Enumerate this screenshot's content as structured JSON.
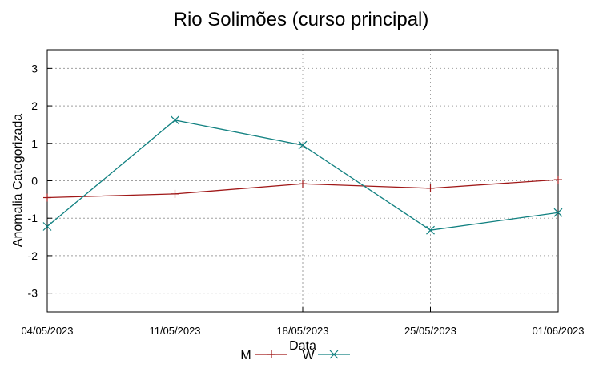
{
  "chart_data": {
    "type": "line",
    "title": "Rio Solimões (curso principal)",
    "xlabel": "Data",
    "ylabel": "Anomalia Categorizada",
    "categories": [
      "04/05/2023",
      "11/05/2023",
      "18/05/2023",
      "25/05/2023",
      "01/06/2023"
    ],
    "ylim": [
      -3.5,
      3.5
    ],
    "yticks": [
      -3,
      -2,
      -1,
      0,
      1,
      2,
      3
    ],
    "grid": true,
    "legend": "bottom-center",
    "series": [
      {
        "name": "M",
        "color": "#a01818",
        "marker": "plus",
        "values": [
          -0.45,
          -0.35,
          -0.08,
          -0.2,
          0.03
        ]
      },
      {
        "name": "W",
        "color": "#108080",
        "marker": "x",
        "values": [
          -1.22,
          1.62,
          0.95,
          -1.32,
          -0.85
        ]
      }
    ]
  }
}
